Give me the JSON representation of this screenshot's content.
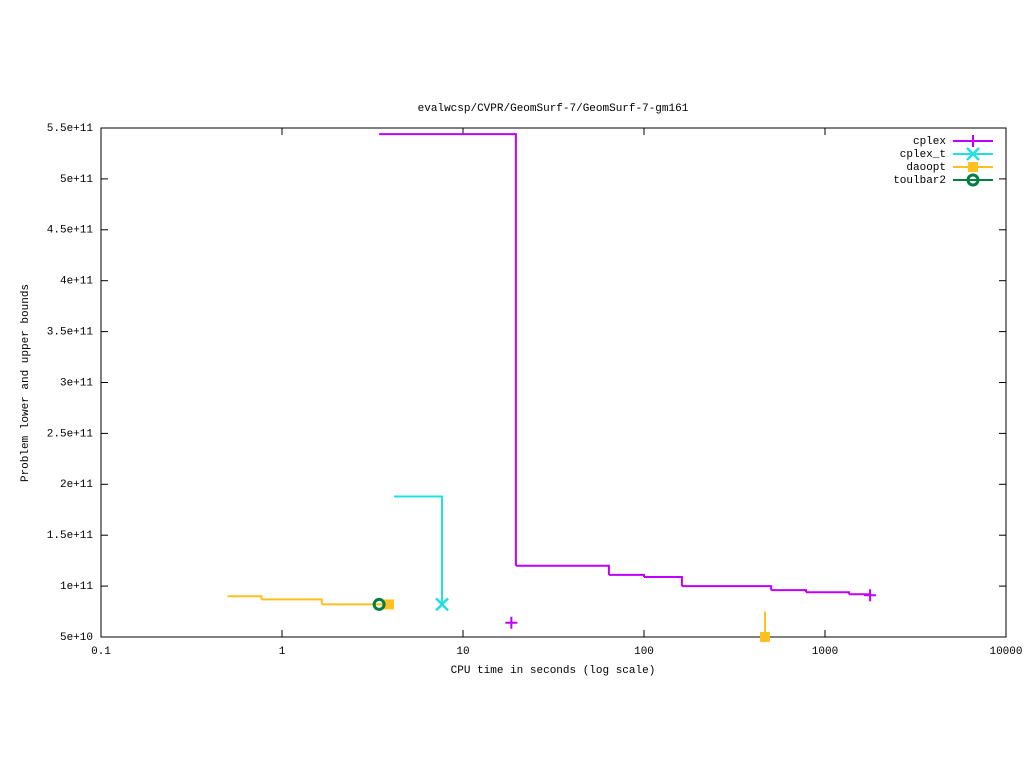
{
  "chart_data": {
    "type": "step",
    "title": "evalwcsp/CVPR/GeomSurf-7/GeomSurf-7-gm161",
    "x_label": "CPU time in seconds (log scale)",
    "y_label": "Problem lower and upper bounds",
    "xlog": true,
    "xlim": [
      0.1,
      10000
    ],
    "xticks": [
      0.1,
      1,
      10,
      100,
      1000,
      10000
    ],
    "ylim": [
      50000000000,
      550000000000
    ],
    "yticks": [
      {
        "value": 50000000000,
        "label": "5e+10"
      },
      {
        "value": 100000000000,
        "label": "1e+11"
      },
      {
        "value": 150000000000,
        "label": "1.5e+11"
      },
      {
        "value": 200000000000,
        "label": "2e+11"
      },
      {
        "value": 250000000000,
        "label": "2.5e+11"
      },
      {
        "value": 300000000000,
        "label": "3e+11"
      },
      {
        "value": 350000000000,
        "label": "3.5e+11"
      },
      {
        "value": 400000000000,
        "label": "4e+11"
      },
      {
        "value": 450000000000,
        "label": "4.5e+11"
      },
      {
        "value": 500000000000,
        "label": "5e+11"
      },
      {
        "value": 550000000000,
        "label": "5.5e+11"
      }
    ],
    "legend": "top-right",
    "series": [
      {
        "name": "cplex",
        "color": "#c000ff",
        "marker": "plus",
        "x": [
          3.44,
          19.6,
          64,
          100,
          162,
          504,
          786,
          1358,
          1775,
          null,
          18.5
        ],
        "values": [
          544000000000,
          120000000000,
          111000000000,
          109000000000,
          100000000000,
          96000000000,
          94000000000,
          92000000000,
          91000000000,
          null,
          64000000000
        ]
      },
      {
        "name": "cplex_t",
        "color": "#20e0e0",
        "marker": "cross",
        "x": [
          4.16,
          7.66
        ],
        "values": [
          188000000000,
          82000000000
        ]
      },
      {
        "name": "daoopt",
        "color": "#ffc020",
        "marker": "square",
        "x": [
          0.5,
          0.77,
          1.66,
          3.9,
          null,
          466,
          466
        ],
        "values": [
          90000000000,
          87000000000,
          82000000000,
          82000000000,
          null,
          75000000000,
          50000000000
        ]
      },
      {
        "name": "toulbar2",
        "color": "#008040",
        "marker": "circle",
        "x": [
          3.44
        ],
        "values": [
          82000000000
        ]
      }
    ]
  }
}
